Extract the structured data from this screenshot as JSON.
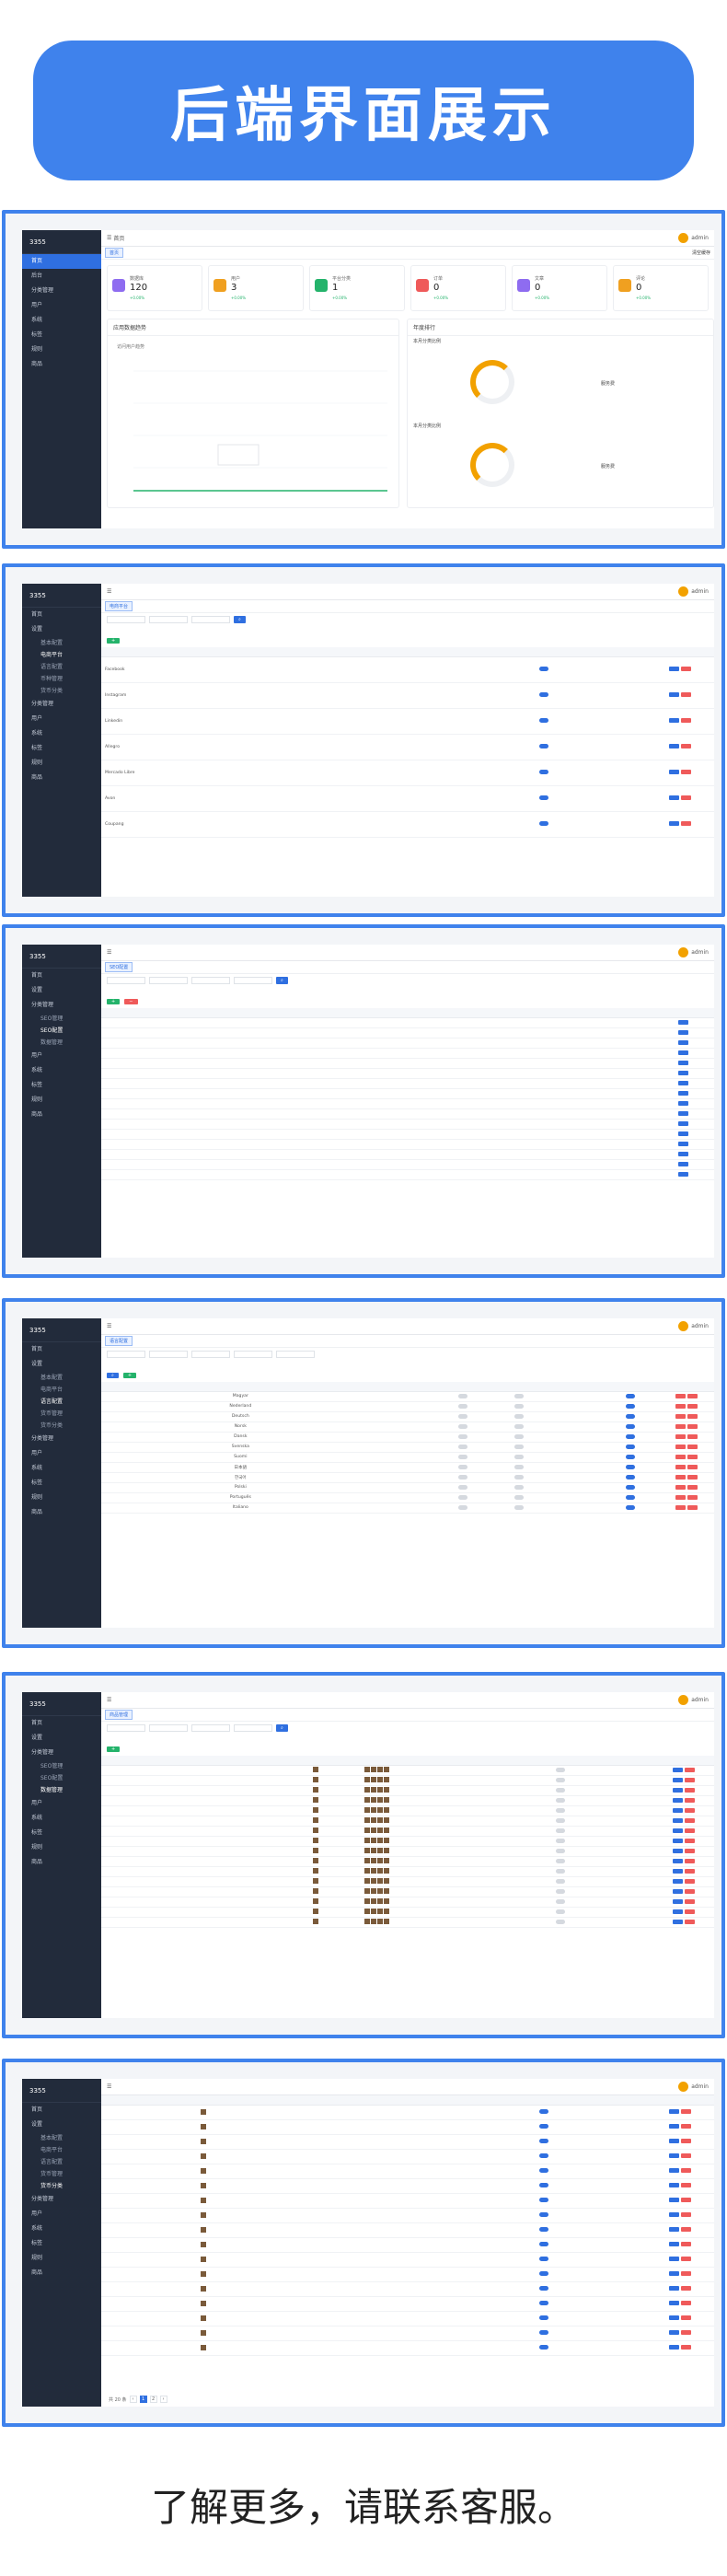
{
  "hero": {
    "title": "后端界面展示"
  },
  "footer": {
    "text": "了解更多，请联系客服。"
  },
  "colors": {
    "accent": "#3f82ec",
    "sidebar": "#222b3b",
    "primary": "#2f6fe0",
    "success": "#24b36b",
    "warning": "#f0a020",
    "danger": "#ef5a5a"
  },
  "app": {
    "logo": "3355",
    "user": "admin",
    "clear_cache": "清空缓存"
  },
  "sidebar": {
    "s1": [
      "首页",
      "后台",
      "分类管理",
      "用户",
      "系统",
      "标签",
      "规则",
      "商品"
    ],
    "s2": [
      "首页",
      "设置",
      "基本配置",
      "电商平台",
      "语言配置",
      "币种管理",
      "货币分类",
      "分类管理",
      "用户",
      "系统",
      "标签",
      "规则",
      "商品"
    ],
    "s3": [
      "首页",
      "设置",
      "分类管理",
      "SEO管理",
      "SEO配置",
      "数据管理",
      "用户",
      "系统",
      "标签",
      "规则",
      "商品"
    ],
    "s4": [
      "首页",
      "设置",
      "基本配置",
      "电商平台",
      "语言配置",
      "货币管理",
      "货币分类",
      "分类管理",
      "用户",
      "系统",
      "标签",
      "规则",
      "商品"
    ],
    "s5": [
      "首页",
      "设置",
      "分类管理",
      "SEO管理",
      "SEO配置",
      "数据管理",
      "用户",
      "系统",
      "标签",
      "规则",
      "商品"
    ],
    "s6": [
      "首页",
      "设置",
      "基本配置",
      "电商平台",
      "语言配置",
      "货币管理",
      "货币分类",
      "分类管理",
      "用户",
      "系统",
      "标签",
      "规则",
      "商品"
    ]
  },
  "dashboard": {
    "tab": "首页",
    "cards": [
      {
        "label": "数据库",
        "value": "120",
        "color": "#8e6cf0"
      },
      {
        "label": "用户",
        "value": "3",
        "color": "#f0a020"
      },
      {
        "label": "平台分类",
        "value": "1",
        "color": "#24b36b"
      },
      {
        "label": "订单",
        "value": "0",
        "color": "#ef5a5a"
      },
      {
        "label": "文章",
        "value": "0",
        "color": "#8e6cf0"
      },
      {
        "label": "评论",
        "value": "0",
        "color": "#f0a020"
      }
    ],
    "card_delta": "+0.00%",
    "chart_title": "应用数据趋势",
    "chart_sub": "访问用户趋势",
    "right_title": "年度排行",
    "donut1_title": "本月分类比例",
    "donut2_title": "本月分类比例",
    "donut_legend": "服务费"
  },
  "platforms": {
    "tab": "电商平台",
    "rows": [
      "Facebook",
      "Instagram",
      "Linkedin",
      "Allegro",
      "Mercado Libre",
      "Avon",
      "Coupang"
    ]
  },
  "seo": {
    "tab": "SEO配置",
    "count": 16
  },
  "lang": {
    "tab": "语言配置",
    "rows": [
      "Magyar",
      "Nederland",
      "Deutsch",
      "Norsk",
      "Dansk",
      "Svenska",
      "Suomi",
      "日本語",
      "한국어",
      "Polski",
      "Português",
      "Italiano"
    ]
  },
  "goods": {
    "tab": "商品管理",
    "count": 16
  },
  "articles": {
    "tab": "文章列表",
    "count": 17,
    "pager_total": "共 20 条"
  }
}
